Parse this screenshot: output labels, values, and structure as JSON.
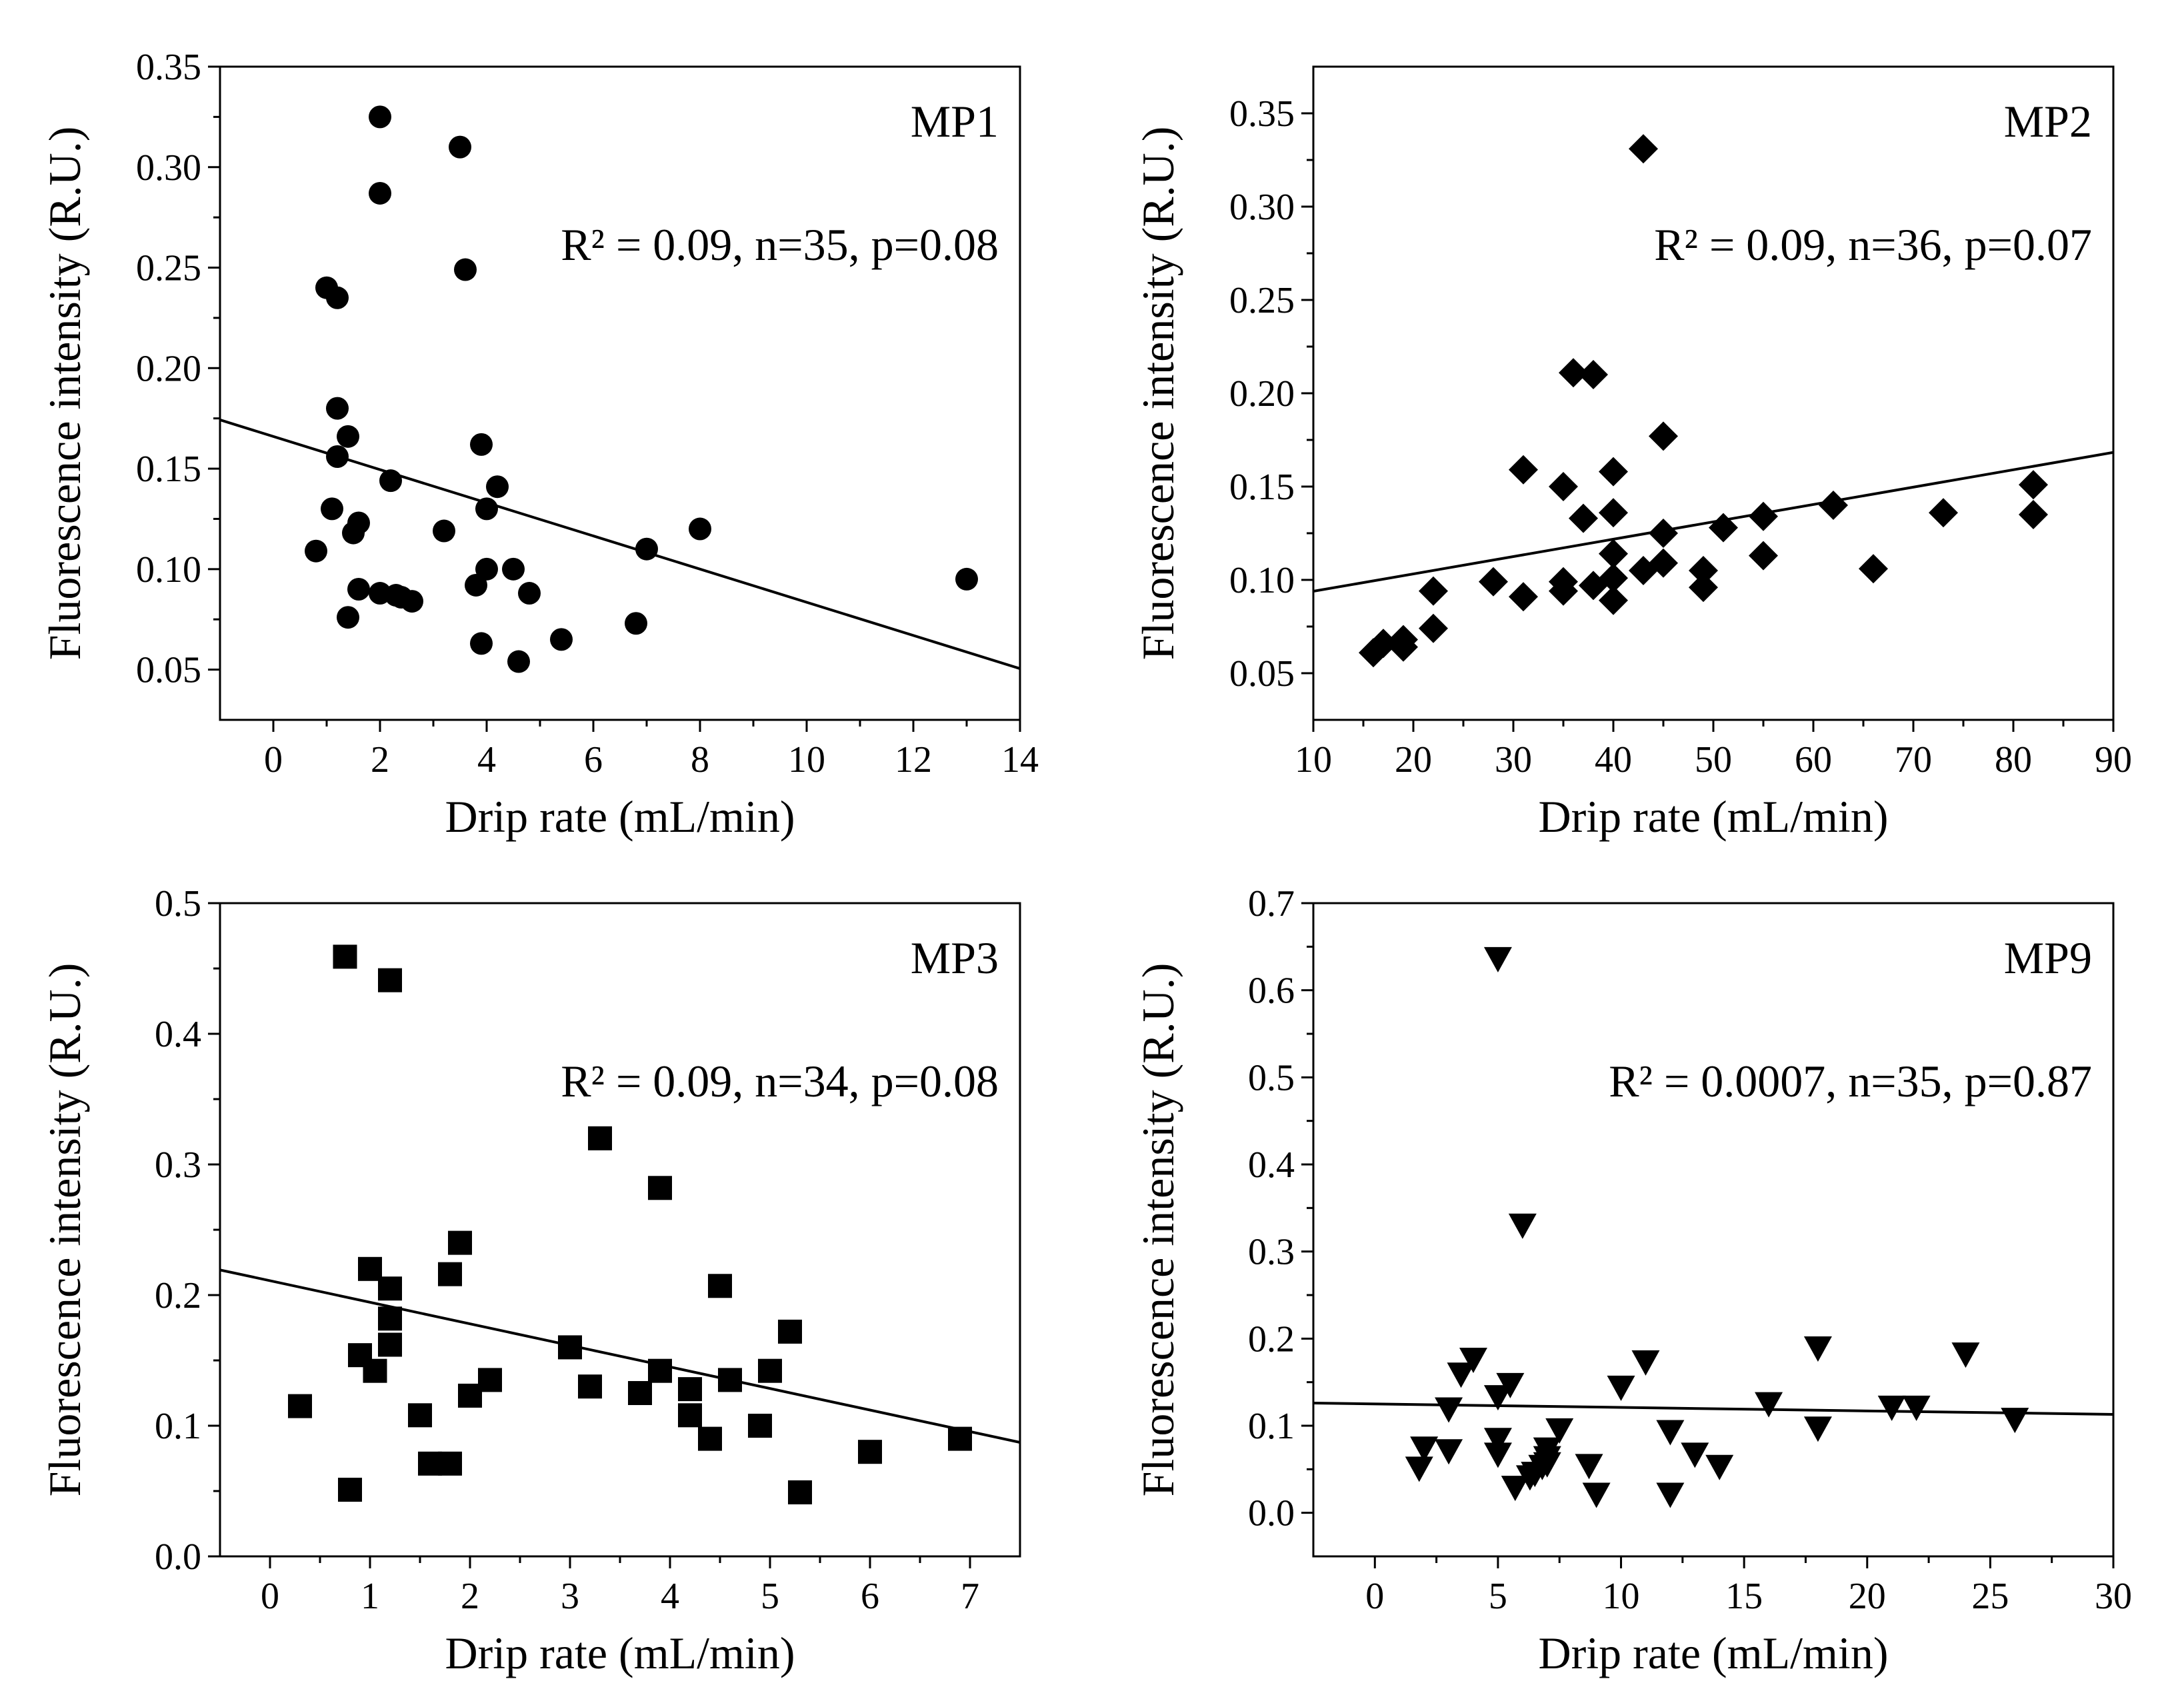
{
  "chart_data": [
    {
      "type": "scatter",
      "panel_label": "MP1",
      "stats": "R² = 0.09, n=35, p=0.08",
      "xlabel": "Drip rate (mL/min)",
      "ylabel": "Fluorescence intensity (R.U.)",
      "xlim": [
        -1,
        14
      ],
      "ylim": [
        0.025,
        0.35
      ],
      "xticks": [
        0,
        2,
        4,
        6,
        8,
        10,
        12,
        14
      ],
      "yticks": [
        0.05,
        0.1,
        0.15,
        0.2,
        0.25,
        0.3,
        0.35
      ],
      "xtick_labels": [
        "0",
        "2",
        "4",
        "6",
        "8",
        "10",
        "12",
        "14"
      ],
      "ytick_labels": [
        "0.05",
        "0.10",
        "0.15",
        "0.20",
        "0.25",
        "0.30",
        "0.35"
      ],
      "marker": "circle",
      "fit": {
        "slope": -0.00825,
        "intercept": 0.166
      },
      "points": [
        [
          2.0,
          0.325
        ],
        [
          3.5,
          0.31
        ],
        [
          2.0,
          0.287
        ],
        [
          3.6,
          0.249
        ],
        [
          1.0,
          0.24
        ],
        [
          1.2,
          0.235
        ],
        [
          1.2,
          0.18
        ],
        [
          1.4,
          0.166
        ],
        [
          3.9,
          0.162
        ],
        [
          1.2,
          0.156
        ],
        [
          2.2,
          0.144
        ],
        [
          4.2,
          0.141
        ],
        [
          4.0,
          0.13
        ],
        [
          1.1,
          0.13
        ],
        [
          1.6,
          0.123
        ],
        [
          3.2,
          0.119
        ],
        [
          8.0,
          0.12
        ],
        [
          1.5,
          0.118
        ],
        [
          7.0,
          0.11
        ],
        [
          0.8,
          0.109
        ],
        [
          4.0,
          0.1
        ],
        [
          4.5,
          0.1
        ],
        [
          13.0,
          0.095
        ],
        [
          3.8,
          0.092
        ],
        [
          1.6,
          0.09
        ],
        [
          2.0,
          0.088
        ],
        [
          4.8,
          0.088
        ],
        [
          2.3,
          0.087
        ],
        [
          2.6,
          0.084
        ],
        [
          1.4,
          0.076
        ],
        [
          6.8,
          0.073
        ],
        [
          5.4,
          0.065
        ],
        [
          3.9,
          0.063
        ],
        [
          4.6,
          0.054
        ],
        [
          2.4,
          0.086
        ]
      ]
    },
    {
      "type": "scatter",
      "panel_label": "MP2",
      "stats": "R² = 0.09, n=36, p=0.07",
      "xlabel": "Drip rate (mL/min)",
      "ylabel": "Fluorescence intensity (R.U.)",
      "xlim": [
        10,
        90
      ],
      "ylim": [
        0.025,
        0.375
      ],
      "xticks": [
        10,
        20,
        30,
        40,
        50,
        60,
        70,
        80,
        90
      ],
      "yticks": [
        0.05,
        0.1,
        0.15,
        0.2,
        0.25,
        0.3,
        0.35
      ],
      "xtick_labels": [
        "10",
        "20",
        "30",
        "40",
        "50",
        "60",
        "70",
        "80",
        "90"
      ],
      "ytick_labels": [
        "0.05",
        "0.10",
        "0.15",
        "0.20",
        "0.25",
        "0.30",
        "0.35"
      ],
      "marker": "diamond",
      "fit": {
        "slope": 0.00093,
        "intercept": 0.0846
      },
      "points": [
        [
          43,
          0.331
        ],
        [
          36,
          0.211
        ],
        [
          38,
          0.21
        ],
        [
          45,
          0.177
        ],
        [
          31,
          0.159
        ],
        [
          40,
          0.158
        ],
        [
          35,
          0.15
        ],
        [
          62,
          0.14
        ],
        [
          40,
          0.136
        ],
        [
          73,
          0.136
        ],
        [
          82,
          0.151
        ],
        [
          82,
          0.135
        ],
        [
          37,
          0.133
        ],
        [
          55,
          0.134
        ],
        [
          51,
          0.128
        ],
        [
          45,
          0.125
        ],
        [
          40,
          0.114
        ],
        [
          55,
          0.113
        ],
        [
          45,
          0.109
        ],
        [
          66,
          0.106
        ],
        [
          43,
          0.105
        ],
        [
          49,
          0.105
        ],
        [
          40,
          0.101
        ],
        [
          28,
          0.099
        ],
        [
          35,
          0.099
        ],
        [
          38,
          0.097
        ],
        [
          49,
          0.096
        ],
        [
          35,
          0.094
        ],
        [
          22,
          0.094
        ],
        [
          31,
          0.091
        ],
        [
          40,
          0.089
        ],
        [
          22,
          0.074
        ],
        [
          19,
          0.068
        ],
        [
          17,
          0.066
        ],
        [
          19,
          0.064
        ],
        [
          16,
          0.061
        ]
      ]
    },
    {
      "type": "scatter",
      "panel_label": "MP3",
      "stats": "R² = 0.09, n=34, p=0.08",
      "xlabel": "Drip rate (mL/min)",
      "ylabel": "Fluorescence intensity (R.U.)",
      "xlim": [
        -0.5,
        7.5
      ],
      "ylim": [
        0.0,
        0.5
      ],
      "xticks": [
        0,
        1,
        2,
        3,
        4,
        5,
        6,
        7
      ],
      "yticks": [
        0.0,
        0.1,
        0.2,
        0.3,
        0.4,
        0.5
      ],
      "xtick_labels": [
        "0",
        "1",
        "2",
        "3",
        "4",
        "5",
        "6",
        "7"
      ],
      "ytick_labels": [
        "0.0",
        "0.1",
        "0.2",
        "0.3",
        "0.4",
        "0.5"
      ],
      "marker": "square",
      "fit": {
        "slope": -0.0165,
        "intercept": 0.211
      },
      "points": [
        [
          0.75,
          0.459
        ],
        [
          1.2,
          0.441
        ],
        [
          3.3,
          0.32
        ],
        [
          3.9,
          0.282
        ],
        [
          1.9,
          0.24
        ],
        [
          1.0,
          0.22
        ],
        [
          1.8,
          0.216
        ],
        [
          4.5,
          0.207
        ],
        [
          1.2,
          0.205
        ],
        [
          1.2,
          0.182
        ],
        [
          5.2,
          0.172
        ],
        [
          1.2,
          0.162
        ],
        [
          3.0,
          0.16
        ],
        [
          0.9,
          0.154
        ],
        [
          1.05,
          0.142
        ],
        [
          3.9,
          0.142
        ],
        [
          5.0,
          0.142
        ],
        [
          2.2,
          0.135
        ],
        [
          4.6,
          0.135
        ],
        [
          3.2,
          0.13
        ],
        [
          4.2,
          0.128
        ],
        [
          3.7,
          0.125
        ],
        [
          2.0,
          0.123
        ],
        [
          0.3,
          0.115
        ],
        [
          1.5,
          0.108
        ],
        [
          4.2,
          0.108
        ],
        [
          4.9,
          0.1
        ],
        [
          4.4,
          0.09
        ],
        [
          6.9,
          0.09
        ],
        [
          6.0,
          0.08
        ],
        [
          1.6,
          0.071
        ],
        [
          1.8,
          0.071
        ],
        [
          0.8,
          0.051
        ],
        [
          5.3,
          0.049
        ]
      ]
    },
    {
      "type": "scatter",
      "panel_label": "MP9",
      "stats": "R² = 0.0007, n=35, p=0.87",
      "xlabel": "Drip rate (mL/min)",
      "ylabel": "Fluorescence intensity (R.U.)",
      "xlim": [
        -2.5,
        30
      ],
      "ylim": [
        -0.05,
        0.7
      ],
      "xticks": [
        0,
        5,
        10,
        15,
        20,
        25,
        30
      ],
      "yticks": [
        0.0,
        0.1,
        0.2,
        0.3,
        0.4,
        0.5,
        0.6,
        0.7
      ],
      "xtick_labels": [
        "0",
        "5",
        "10",
        "15",
        "20",
        "25",
        "30"
      ],
      "ytick_labels": [
        "0.0",
        "0.1",
        "0.2",
        "0.3",
        "0.4",
        "0.5",
        "0.6",
        "0.7"
      ],
      "marker": "triangle-down",
      "fit": {
        "slope": -0.0004,
        "intercept": 0.125
      },
      "points": [
        [
          5,
          0.635
        ],
        [
          6,
          0.329
        ],
        [
          18,
          0.188
        ],
        [
          24,
          0.181
        ],
        [
          4,
          0.175
        ],
        [
          11,
          0.172
        ],
        [
          3.5,
          0.158
        ],
        [
          5.5,
          0.146
        ],
        [
          10,
          0.143
        ],
        [
          5,
          0.132
        ],
        [
          16,
          0.124
        ],
        [
          21,
          0.12
        ],
        [
          22,
          0.12
        ],
        [
          3,
          0.118
        ],
        [
          26,
          0.106
        ],
        [
          18,
          0.096
        ],
        [
          7.5,
          0.094
        ],
        [
          12,
          0.092
        ],
        [
          5,
          0.083
        ],
        [
          2,
          0.073
        ],
        [
          7,
          0.072
        ],
        [
          3,
          0.07
        ],
        [
          13,
          0.066
        ],
        [
          5,
          0.066
        ],
        [
          7,
          0.062
        ],
        [
          8.7,
          0.053
        ],
        [
          14,
          0.052
        ],
        [
          6.8,
          0.052
        ],
        [
          1.8,
          0.05
        ],
        [
          6.5,
          0.044
        ],
        [
          5.7,
          0.028
        ],
        [
          9,
          0.02
        ],
        [
          12,
          0.02
        ],
        [
          7,
          0.055
        ],
        [
          6.3,
          0.04
        ]
      ]
    }
  ]
}
